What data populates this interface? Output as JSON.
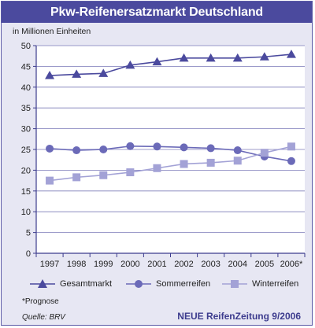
{
  "header": {
    "title": "Pkw-Reifenersatzmarkt Deutschland"
  },
  "chart_data": {
    "type": "line",
    "title": "Pkw-Reifenersatzmarkt Deutschland",
    "ylabel": "in Millionen Einheiten",
    "xlabel": "",
    "categories": [
      "1997",
      "1998",
      "1999",
      "2000",
      "2001",
      "2002",
      "2003",
      "2004",
      "2005",
      "2006*"
    ],
    "ylim": [
      0,
      50
    ],
    "yticks": [
      0,
      5,
      10,
      15,
      20,
      25,
      30,
      35,
      40,
      45,
      50
    ],
    "grid": true,
    "legend_position": "bottom",
    "series": [
      {
        "name": "Gesamtmarkt",
        "marker": "triangle",
        "color": "#4b4a9e",
        "values": [
          42.8,
          43.1,
          43.3,
          45.3,
          46.1,
          47.0,
          47.0,
          47.0,
          47.3,
          47.9
        ]
      },
      {
        "name": "Sommerreifen",
        "marker": "circle",
        "color": "#6b6ab8",
        "values": [
          25.2,
          24.8,
          25.0,
          25.8,
          25.7,
          25.5,
          25.3,
          24.8,
          23.3,
          22.2
        ]
      },
      {
        "name": "Winterreifen",
        "marker": "square",
        "color": "#a3a2d6",
        "values": [
          17.5,
          18.3,
          18.8,
          19.5,
          20.5,
          21.5,
          21.8,
          22.3,
          24.2,
          25.7
        ]
      }
    ]
  },
  "footer": {
    "footnote": "*Prognose",
    "source": "Quelle: BRV",
    "publisher": "NEUE ReifenZeitung 9/2006"
  }
}
